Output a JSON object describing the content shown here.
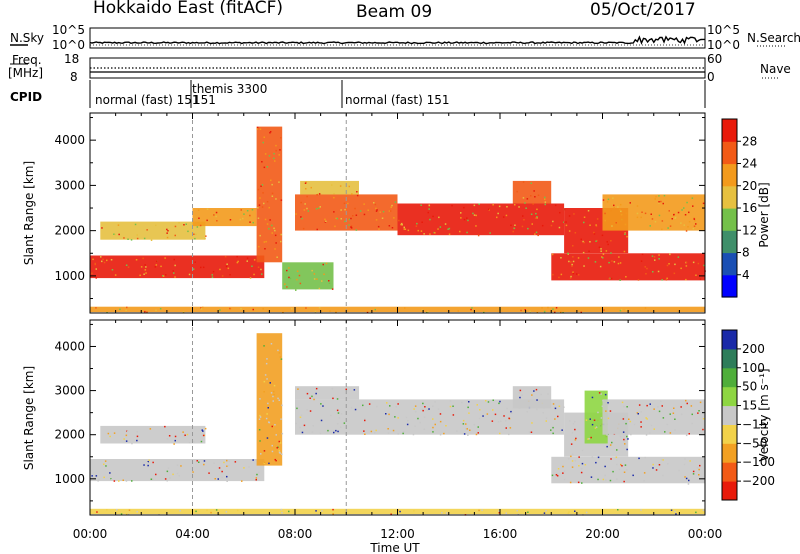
{
  "header": {
    "station": "Hokkaido East (fitACF)",
    "beam": "Beam 09",
    "date": "05/Oct/2017"
  },
  "top_panel": {
    "nsky_label": "N.Sky",
    "nsearch_label": "N.Search",
    "freq_label_line1": "Freq.",
    "freq_label_line2": "[MHz]",
    "nave_label": "Nave",
    "cpid_label": "CPID",
    "left_ticks_noise": [
      "10^5",
      "10^0"
    ],
    "right_ticks_noise": [
      "10^5",
      "10^0"
    ],
    "left_ticks_freq": [
      "18",
      "8"
    ],
    "right_ticks_freq": [
      "60",
      "0"
    ]
  },
  "cpid_segments": [
    {
      "label": "normal (fast) 151",
      "start": 0,
      "end": 4
    },
    {
      "label": "themis 3300",
      "start": 4,
      "end": 10
    },
    {
      "label": "normal (fast) 151",
      "start": 10,
      "end": 24
    }
  ],
  "cpid_overlap_label": "151",
  "chart_data": [
    {
      "type": "heatmap",
      "parameter": "Power",
      "xlabel": "",
      "ylabel": "Slant Range [km]",
      "xlim": [
        0,
        24
      ],
      "ylim": [
        180,
        4600
      ],
      "x_ticks": [
        "00:00",
        "04:00",
        "08:00",
        "12:00",
        "16:00",
        "20:00",
        "00:00"
      ],
      "y_ticks": [
        1000,
        2000,
        3000,
        4000
      ],
      "colorbar_label": "Power [dB]",
      "colorbar_range": [
        0,
        32
      ],
      "colorbar_ticks": [
        4,
        8,
        12,
        16,
        20,
        24,
        28
      ],
      "colors": [
        "#0000ff",
        "#1a4fb4",
        "#3f8f6a",
        "#74c04a",
        "#e6c040",
        "#f39a1c",
        "#f25a16",
        "#e81a0a"
      ],
      "bands": [
        {
          "t0": 0.0,
          "t1": 6.8,
          "r0": 950,
          "r1": 1450,
          "level": 7
        },
        {
          "t0": 0.4,
          "t1": 4.5,
          "r0": 1800,
          "r1": 2200,
          "level": 4
        },
        {
          "t0": 4.0,
          "t1": 6.5,
          "r0": 2100,
          "r1": 2500,
          "level": 5
        },
        {
          "t0": 6.5,
          "t1": 7.5,
          "r0": 1300,
          "r1": 4300,
          "level": 6
        },
        {
          "t0": 7.5,
          "t1": 9.5,
          "r0": 700,
          "r1": 1300,
          "level": 3
        },
        {
          "t0": 8.0,
          "t1": 12.0,
          "r0": 2000,
          "r1": 2800,
          "level": 6
        },
        {
          "t0": 8.2,
          "t1": 10.5,
          "r0": 2800,
          "r1": 3100,
          "level": 4
        },
        {
          "t0": 12.0,
          "t1": 18.5,
          "r0": 1900,
          "r1": 2600,
          "level": 7
        },
        {
          "t0": 16.5,
          "t1": 18.0,
          "r0": 2600,
          "r1": 3100,
          "level": 6
        },
        {
          "t0": 18.0,
          "t1": 24.0,
          "r0": 900,
          "r1": 1500,
          "level": 7
        },
        {
          "t0": 18.5,
          "t1": 21.0,
          "r0": 1500,
          "r1": 2500,
          "level": 7
        },
        {
          "t0": 20.0,
          "t1": 24.0,
          "r0": 2000,
          "r1": 2800,
          "level": 5
        },
        {
          "t0": 0.0,
          "t1": 24.0,
          "r0": 200,
          "r1": 320,
          "level": 5
        }
      ]
    },
    {
      "type": "heatmap",
      "parameter": "Velocity",
      "xlabel": "Time UT",
      "ylabel": "Slant Range [km]",
      "xlim": [
        0,
        24
      ],
      "ylim": [
        180,
        4600
      ],
      "x_ticks": [
        "00:00",
        "04:00",
        "08:00",
        "12:00",
        "16:00",
        "20:00",
        "00:00"
      ],
      "y_ticks": [
        1000,
        2000,
        3000,
        4000
      ],
      "colorbar_label": "Velocity [m s⁻¹]",
      "colorbar_range": [
        -250,
        250
      ],
      "colorbar_ticks": [
        "200",
        "100",
        "50",
        "15",
        "−15",
        "−50",
        "−100",
        "−200"
      ],
      "colors": [
        "#1a2aa8",
        "#2e7d5a",
        "#4fae3a",
        "#8ed642",
        "#c8c8c8",
        "#f2d24a",
        "#f2a022",
        "#f25a16",
        "#e81a0a"
      ],
      "bands": [
        {
          "t0": 0.0,
          "t1": 6.8,
          "r0": 950,
          "r1": 1450,
          "level": 4
        },
        {
          "t0": 0.4,
          "t1": 4.5,
          "r0": 1800,
          "r1": 2200,
          "level": 4
        },
        {
          "t0": 6.5,
          "t1": 7.5,
          "r0": 1300,
          "r1": 4300,
          "level": 6
        },
        {
          "t0": 8.0,
          "t1": 18.5,
          "r0": 2000,
          "r1": 2800,
          "level": 4
        },
        {
          "t0": 8.0,
          "t1": 10.5,
          "r0": 2800,
          "r1": 3100,
          "level": 4
        },
        {
          "t0": 16.5,
          "t1": 18.0,
          "r0": 2600,
          "r1": 3100,
          "level": 4
        },
        {
          "t0": 18.0,
          "t1": 24.0,
          "r0": 900,
          "r1": 1500,
          "level": 4
        },
        {
          "t0": 18.5,
          "t1": 21.0,
          "r0": 1500,
          "r1": 2500,
          "level": 4
        },
        {
          "t0": 19.3,
          "t1": 20.2,
          "r0": 1800,
          "r1": 3000,
          "level": 3
        },
        {
          "t0": 20.0,
          "t1": 24.0,
          "r0": 2000,
          "r1": 2800,
          "level": 4
        },
        {
          "t0": 0.0,
          "t1": 24.0,
          "r0": 200,
          "r1": 320,
          "level": 5
        }
      ]
    }
  ]
}
